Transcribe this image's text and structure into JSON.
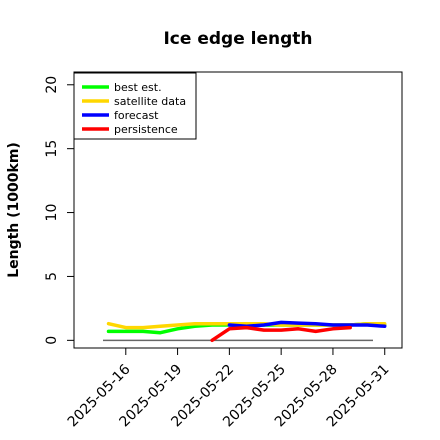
{
  "chart_data": {
    "type": "line",
    "title": "Ice edge length",
    "xlabel": "",
    "ylabel": "Length (1000km)",
    "ylim": [
      -0.6,
      21
    ],
    "xlim": [
      "2025-05-13",
      "2025-06-01"
    ],
    "yticks": [
      "0",
      "5",
      "10",
      "15",
      "20"
    ],
    "xticks": [
      "2025-05-16",
      "2025-05-19",
      "2025-05-22",
      "2025-05-25",
      "2025-05-28",
      "2025-05-31"
    ],
    "highlight_tick": "2025-05-22",
    "highlight_color": "#228B22",
    "legend_position": "top-left",
    "grid": false,
    "zero_line": true,
    "series": [
      {
        "name": "best est.",
        "color": "#00ff00",
        "points": [
          [
            "2025-05-15",
            0.7
          ],
          [
            "2025-05-16",
            0.7
          ],
          [
            "2025-05-17",
            0.7
          ],
          [
            "2025-05-18",
            0.6
          ],
          [
            "2025-05-19",
            0.9
          ],
          [
            "2025-05-20",
            1.1
          ],
          [
            "2025-05-21",
            1.2
          ],
          [
            "2025-05-22",
            1.2
          ],
          [
            "2025-05-23",
            1.2
          ],
          [
            "2025-05-24",
            1.2
          ],
          [
            "2025-05-25",
            1.2
          ],
          [
            "2025-05-26",
            1.2
          ],
          [
            "2025-05-27",
            1.2
          ],
          [
            "2025-05-28",
            1.2
          ],
          [
            "2025-05-29",
            1.2
          ],
          [
            "2025-05-30",
            1.3
          ],
          [
            "2025-05-31",
            1.2
          ]
        ]
      },
      {
        "name": "satellite data",
        "color": "#ffd700",
        "points": [
          [
            "2025-05-15",
            1.3
          ],
          [
            "2025-05-16",
            1.0
          ],
          [
            "2025-05-17",
            1.0
          ],
          [
            "2025-05-18",
            1.1
          ],
          [
            "2025-05-19",
            1.2
          ],
          [
            "2025-05-20",
            1.3
          ],
          [
            "2025-05-21",
            1.3
          ],
          [
            "2025-05-22",
            1.3
          ],
          [
            "2025-05-23",
            1.3
          ],
          [
            "2025-05-24",
            1.3
          ],
          [
            "2025-05-25",
            1.2
          ],
          [
            "2025-05-26",
            1.2
          ],
          [
            "2025-05-27",
            1.2
          ],
          [
            "2025-05-28",
            1.2
          ],
          [
            "2025-05-29",
            1.2
          ],
          [
            "2025-05-30",
            1.3
          ],
          [
            "2025-05-31",
            1.3
          ]
        ]
      },
      {
        "name": "forecast",
        "color": "#0000ff",
        "points": [
          [
            "2025-05-22",
            1.2
          ],
          [
            "2025-05-23",
            1.1
          ],
          [
            "2025-05-24",
            1.2
          ],
          [
            "2025-05-25",
            1.4
          ],
          [
            "2025-05-26",
            1.35
          ],
          [
            "2025-05-27",
            1.3
          ],
          [
            "2025-05-28",
            1.2
          ],
          [
            "2025-05-29",
            1.2
          ],
          [
            "2025-05-30",
            1.2
          ],
          [
            "2025-05-31",
            1.1
          ]
        ]
      },
      {
        "name": "persistence",
        "color": "#ff0000",
        "points": [
          [
            "2025-05-21",
            0.0
          ],
          [
            "2025-05-22",
            0.9
          ],
          [
            "2025-05-23",
            1.0
          ],
          [
            "2025-05-24",
            0.8
          ],
          [
            "2025-05-25",
            0.8
          ],
          [
            "2025-05-26",
            0.9
          ],
          [
            "2025-05-27",
            0.7
          ],
          [
            "2025-05-28",
            0.9
          ],
          [
            "2025-05-29",
            1.0
          ]
        ]
      }
    ]
  }
}
